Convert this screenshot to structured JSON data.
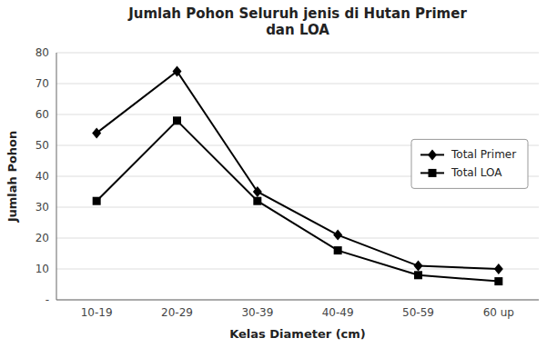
{
  "chart_data": {
    "type": "line",
    "title": "Jumlah Pohon Seluruh jenis di Hutan Primer\ndan LOA",
    "xlabel": "Kelas Diameter (cm)",
    "ylabel": "Jumlah Pohon",
    "categories": [
      "10-19",
      "20-29",
      "30-39",
      "40-49",
      "50-59",
      "60 up"
    ],
    "series": [
      {
        "name": "Total Primer",
        "color": "#000000",
        "marker": "diamond",
        "values": [
          54,
          74,
          35,
          21,
          11,
          10
        ]
      },
      {
        "name": "Total LOA",
        "color": "#000000",
        "marker": "square",
        "values": [
          32,
          58,
          32,
          16,
          8,
          6
        ]
      }
    ],
    "ylim": [
      0,
      80
    ],
    "yticks": [
      {
        "value": 0,
        "label": "-"
      },
      10,
      20,
      30,
      40,
      50,
      60,
      70,
      80
    ],
    "grid": true,
    "legend": "right"
  }
}
